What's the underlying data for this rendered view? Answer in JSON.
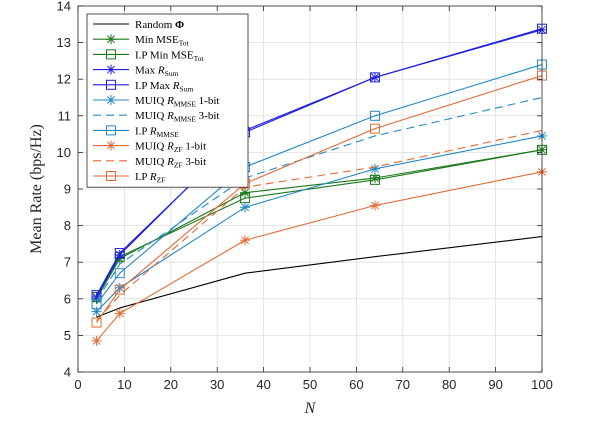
{
  "chart_data": {
    "type": "line",
    "xlabel": "N",
    "ylabel": "Mean Rate (bps/Hz)",
    "xlim": [
      0,
      100
    ],
    "ylim": [
      4,
      14
    ],
    "xticks": [
      0,
      10,
      20,
      30,
      40,
      50,
      60,
      70,
      80,
      90,
      100
    ],
    "yticks": [
      4,
      5,
      6,
      7,
      8,
      9,
      10,
      11,
      12,
      13,
      14
    ],
    "grid": true,
    "legend_position": "top-left",
    "x": [
      4,
      9,
      36,
      64,
      100
    ],
    "series": [
      {
        "name": "Random Φ",
        "label_main": "Random ",
        "label_bold": "Φ",
        "color": "#000000",
        "dash": "",
        "marker": "none",
        "values": [
          5.5,
          5.75,
          6.7,
          7.15,
          7.7
        ]
      },
      {
        "name": "Min MSE_Tot",
        "label_main": "Min MSE",
        "label_sub": "Tot",
        "color": "#1a7a1a",
        "dash": "",
        "marker": "star",
        "values": [
          6.0,
          7.1,
          8.9,
          9.3,
          10.07
        ]
      },
      {
        "name": "I.P Min MSE_Tot",
        "label_main": "I.P Min MSE",
        "label_sub": "Tot",
        "color": "#1a7a1a",
        "dash": "",
        "marker": "square",
        "values": [
          6.05,
          7.15,
          8.75,
          9.25,
          10.07
        ]
      },
      {
        "name": "Max R_Sum",
        "label_main": "Max ",
        "label_italic": "R",
        "label_sub": "Sum",
        "color": "#1f1fe0",
        "dash": "",
        "marker": "star",
        "values": [
          6.05,
          7.2,
          10.6,
          12.05,
          13.35
        ]
      },
      {
        "name": "I.P Max R_Sum",
        "label_main": "I.P Max ",
        "label_italic": "R",
        "label_sub": "Sum",
        "color": "#1f1fe0",
        "dash": "",
        "marker": "square",
        "values": [
          6.1,
          7.25,
          10.55,
          12.05,
          13.38
        ]
      },
      {
        "name": "MUIQ R_MMSE 1-bit",
        "label_main": "MUIQ ",
        "label_italic": "R",
        "label_sub": "MMSE",
        "label_tail": " 1-bit",
        "color": "#2389c8",
        "dash": "",
        "marker": "star",
        "values": [
          5.65,
          6.3,
          8.5,
          9.55,
          10.45
        ]
      },
      {
        "name": "MUIQ R_MMSE 3-bit",
        "label_main": "MUIQ ",
        "label_italic": "R",
        "label_sub": "MMSE",
        "label_tail": " 3-bit",
        "color": "#2389c8",
        "dash": "8 5",
        "marker": "none",
        "values": [
          5.95,
          6.95,
          9.3,
          10.45,
          11.5
        ]
      },
      {
        "name": "I.P R_MMSE",
        "label_main": "I.P ",
        "label_italic": "R",
        "label_sub": "MMSE",
        "color": "#2389c8",
        "dash": "",
        "marker": "square",
        "values": [
          5.85,
          6.7,
          9.6,
          11.0,
          12.4
        ]
      },
      {
        "name": "MUIQ R_ZF 1-bit",
        "label_main": "MUIQ ",
        "label_italic": "R",
        "label_sub": "ZF",
        "label_tail": " 1-bit",
        "color": "#e36b35",
        "dash": "",
        "marker": "star",
        "values": [
          4.85,
          5.6,
          7.6,
          8.55,
          9.47
        ]
      },
      {
        "name": "MUIQ R_ZF 3-bit",
        "label_main": "MUIQ ",
        "label_italic": "R",
        "label_sub": "ZF",
        "label_tail": " 3-bit",
        "color": "#e36b35",
        "dash": "8 5",
        "marker": "none",
        "values": [
          5.4,
          6.1,
          9.05,
          9.6,
          10.6
        ]
      },
      {
        "name": "I.P R_ZF",
        "label_main": "I.P ",
        "label_italic": "R",
        "label_sub": "ZF",
        "color": "#e36b35",
        "dash": "",
        "marker": "square",
        "values": [
          5.35,
          6.25,
          9.15,
          10.65,
          12.1
        ]
      }
    ]
  }
}
